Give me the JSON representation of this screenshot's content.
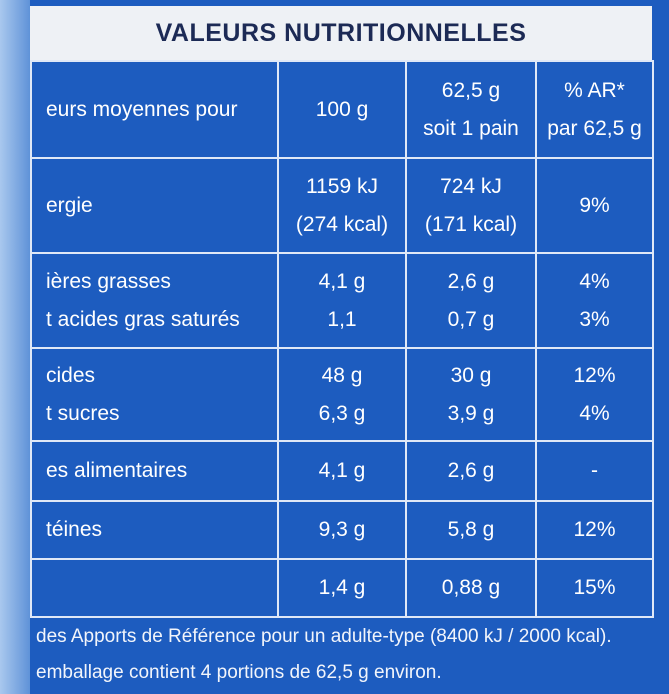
{
  "header": {
    "title": "VALEURS NUTRITIONNELLES"
  },
  "table": {
    "rows": [
      [
        [
          "eurs moyennes pour"
        ],
        [
          "100 g"
        ],
        [
          "62,5 g",
          "soit 1 pain"
        ],
        [
          "% AR*",
          "par 62,5 g"
        ]
      ],
      [
        [
          "ergie"
        ],
        [
          "1159 kJ",
          "(274 kcal)"
        ],
        [
          "724 kJ",
          "(171 kcal)"
        ],
        [
          "9%"
        ]
      ],
      [
        [
          "ières grasses",
          "t acides gras saturés"
        ],
        [
          "4,1 g",
          "1,1"
        ],
        [
          "2,6 g",
          "0,7 g"
        ],
        [
          "4%",
          "3%"
        ]
      ],
      [
        [
          "cides",
          "t sucres"
        ],
        [
          "48 g",
          "6,3 g"
        ],
        [
          "30 g",
          "3,9 g"
        ],
        [
          "12%",
          "4%"
        ]
      ],
      [
        [
          "es alimentaires"
        ],
        [
          "4,1 g"
        ],
        [
          "2,6 g"
        ],
        [
          "-"
        ]
      ],
      [
        [
          "téines"
        ],
        [
          "9,3 g"
        ],
        [
          "5,8 g"
        ],
        [
          "12%"
        ]
      ],
      [
        [],
        [
          "1,4 g"
        ],
        [
          "0,88 g"
        ],
        [
          "15%"
        ]
      ]
    ]
  },
  "footer": {
    "lines": [
      "des Apports de Référence pour un adulte-type (8400 kJ / 2000 kcal).",
      "emballage contient 4 portions de 62,5 g environ."
    ]
  }
}
